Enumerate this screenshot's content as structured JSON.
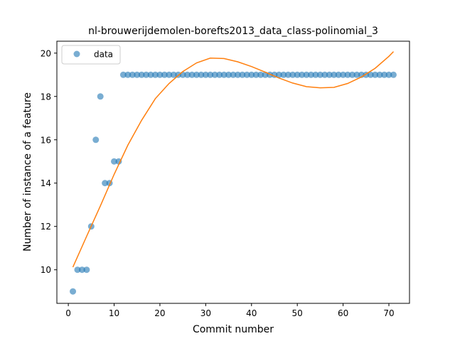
{
  "chart_data": {
    "type": "scatter",
    "title": "nl-brouwerijdemolen-borefts2013_data_class-polinomial_3",
    "xlabel": "Commit number",
    "ylabel": "Number of instance of a feature",
    "xlim": [
      -2.5,
      74.5
    ],
    "ylim": [
      8.45,
      20.55
    ],
    "xticks": [
      0,
      10,
      20,
      30,
      40,
      50,
      60,
      70
    ],
    "yticks": [
      10,
      12,
      14,
      16,
      18,
      20
    ],
    "legend": {
      "placement": "top-left",
      "entries": [
        {
          "label": "data"
        }
      ]
    },
    "series": [
      {
        "name": "data",
        "kind": "scatter",
        "color": "#1f77b4",
        "x": [
          1,
          2,
          3,
          4,
          5,
          6,
          7,
          8,
          9,
          10,
          11,
          12,
          13,
          14,
          15,
          16,
          17,
          18,
          19,
          20,
          21,
          22,
          23,
          24,
          25,
          26,
          27,
          28,
          29,
          30,
          31,
          32,
          33,
          34,
          35,
          36,
          37,
          38,
          39,
          40,
          41,
          42,
          43,
          44,
          45,
          46,
          47,
          48,
          49,
          50,
          51,
          52,
          53,
          54,
          55,
          56,
          57,
          58,
          59,
          60,
          61,
          62,
          63,
          64,
          65,
          66,
          67,
          68,
          69,
          70,
          71
        ],
        "y": [
          9,
          10,
          10,
          10,
          12,
          16,
          18,
          14,
          14,
          15,
          15,
          19,
          19,
          19,
          19,
          19,
          19,
          19,
          19,
          19,
          19,
          19,
          19,
          19,
          19,
          19,
          19,
          19,
          19,
          19,
          19,
          19,
          19,
          19,
          19,
          19,
          19,
          19,
          19,
          19,
          19,
          19,
          19,
          19,
          19,
          19,
          19,
          19,
          19,
          19,
          19,
          19,
          19,
          19,
          19,
          19,
          19,
          19,
          19,
          19,
          19,
          19,
          19,
          19,
          19,
          19,
          19,
          19,
          19,
          19,
          19
        ]
      },
      {
        "kind": "line",
        "color": "#ff7f0e",
        "fit": "polynomial degree 3",
        "x": [
          1,
          4,
          7,
          10,
          13,
          16,
          19,
          22,
          25,
          28,
          31,
          34,
          37,
          40,
          43,
          46,
          49,
          52,
          55,
          58,
          61,
          64,
          67,
          70,
          71
        ],
        "y": [
          10.12,
          11.55,
          12.95,
          14.4,
          15.75,
          16.9,
          17.9,
          18.6,
          19.15,
          19.55,
          19.77,
          19.75,
          19.6,
          19.38,
          19.12,
          18.85,
          18.62,
          18.45,
          18.4,
          18.42,
          18.6,
          18.9,
          19.3,
          19.85,
          20.07
        ]
      }
    ]
  }
}
